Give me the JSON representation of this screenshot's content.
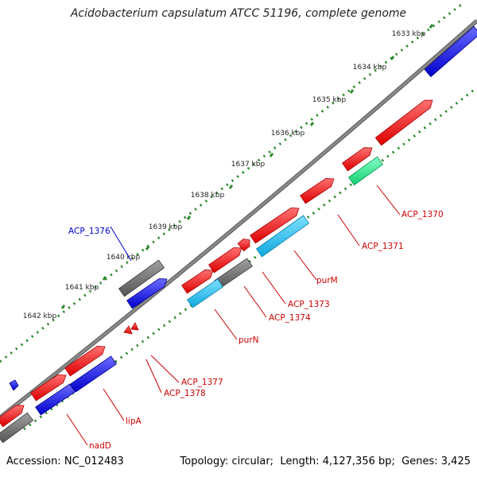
{
  "title": "Acidobacterium capsulatum ATCC 51196, complete genome",
  "footer": {
    "accession_label": "Accession:",
    "accession": "NC_012483",
    "topology_label": "Topology:",
    "topology": "circular",
    "length_label": "Length:",
    "length": "4,127,356 bp",
    "genes_label": "Genes:",
    "genes": "3,425"
  },
  "colors": {
    "backbone": "#8a8a8a",
    "tick_dots": "#2a8a2a",
    "cds": "#ee1111",
    "cds_minus": "#1010dd",
    "rna": "#22dd88",
    "pseudo_grey": "#707070",
    "cyan_gene": "#22c0ee",
    "label_red": "#cc0000",
    "label_blue": "#0000cc"
  },
  "kbp_ticks": [
    {
      "label": "1633 kbp"
    },
    {
      "label": "1634 kbp"
    },
    {
      "label": "1635 kbp"
    },
    {
      "label": "1636 kbp"
    },
    {
      "label": "1637 kbp"
    },
    {
      "label": "1638 kbp"
    },
    {
      "label": "1639 kbp"
    },
    {
      "label": "1640 kbp"
    },
    {
      "label": "1641 kbp"
    },
    {
      "label": "1642 kbp"
    }
  ],
  "gene_labels": [
    {
      "name": "ACP_1370",
      "color": "red"
    },
    {
      "name": "ACP_1371",
      "color": "red"
    },
    {
      "name": "purM",
      "color": "red"
    },
    {
      "name": "ACP_1373",
      "color": "red"
    },
    {
      "name": "ACP_1374",
      "color": "red"
    },
    {
      "name": "purN",
      "color": "red"
    },
    {
      "name": "ACP_1377",
      "color": "red"
    },
    {
      "name": "ACP_1378",
      "color": "red"
    },
    {
      "name": "lipA",
      "color": "red"
    },
    {
      "name": "nadD",
      "color": "red"
    },
    {
      "name": "ACP_1376",
      "color": "blue"
    }
  ]
}
